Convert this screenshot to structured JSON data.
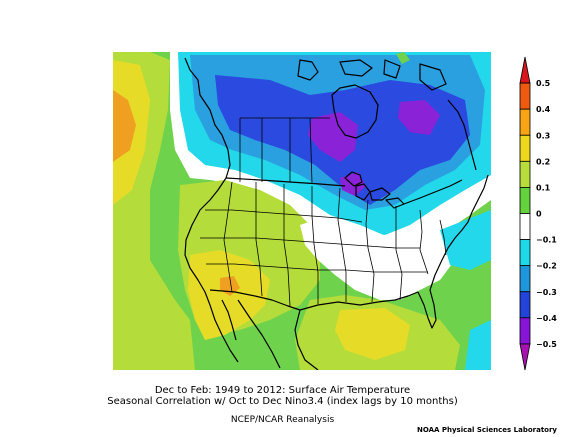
{
  "titles": {
    "line1": "Dec to Feb: 1949 to 2012: Surface Air Temperature",
    "line2": "Seasonal Correlation w/ Oct to Dec Nino3.4 (index lags by 10 months)",
    "line3": "NCEP/NCAR Reanalysis",
    "credit": "NOAA Physical Sciences Laboratory"
  },
  "colorbar": {
    "labels": [
      "0.5",
      "0.4",
      "0.3",
      "0.2",
      "0.1",
      "0",
      "−0.1",
      "−0.2",
      "−0.3",
      "−0.4",
      "−0.5"
    ],
    "colors": [
      "#d8141c",
      "#ee5a10",
      "#f8a414",
      "#eed81e",
      "#b8dc3a",
      "#64d23c",
      "#ffffff",
      "#1ed8e8",
      "#1e96dc",
      "#2244d8",
      "#8814d8",
      "#a812b0"
    ]
  },
  "colors": {
    "ocean_green": "#6ed24c",
    "land_yellowgreen": "#b4dc3a",
    "yellow": "#e6dc28",
    "orange": "#f0a020",
    "white": "#ffffff",
    "cyan": "#22d8ea",
    "blue_light": "#2aa0e0",
    "blue": "#2a4ae0",
    "purple": "#8a22d8"
  }
}
